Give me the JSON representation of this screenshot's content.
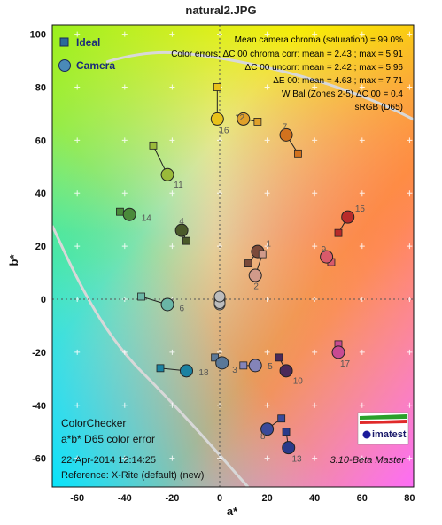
{
  "title": "natural2.JPG",
  "chart_data": {
    "type": "scatter",
    "title": "natural2.JPG",
    "xlabel": "a*",
    "ylabel": "b*",
    "xlim": [
      -70,
      80
    ],
    "ylim": [
      -70,
      103
    ],
    "xticks": [
      "-60",
      "-40",
      "-20",
      "0",
      "20",
      "40",
      "60",
      "80"
    ],
    "yticks": [
      "100",
      "80",
      "60",
      "40",
      "20",
      "0",
      "-20",
      "-40",
      "-60"
    ],
    "legend": [
      {
        "name": "Ideal",
        "marker": "square"
      },
      {
        "name": "Camera",
        "marker": "circle"
      }
    ],
    "legend_position": "top-left",
    "grid": true,
    "patches": [
      {
        "id": "1",
        "ideal": [
          12,
          13.5
        ],
        "camera": [
          16,
          18
        ],
        "color": "#7a4a3a"
      },
      {
        "id": "2",
        "ideal": [
          18,
          17
        ],
        "camera": [
          15,
          9
        ],
        "color": "#d09a8a"
      },
      {
        "id": "3",
        "ideal": [
          -2,
          -22
        ],
        "camera": [
          1,
          -24
        ],
        "color": "#5a7898"
      },
      {
        "id": "4",
        "ideal": [
          -14,
          22
        ],
        "camera": [
          -16,
          26
        ],
        "color": "#4a5a2a"
      },
      {
        "id": "5",
        "ideal": [
          10,
          -25
        ],
        "camera": [
          15,
          -25
        ],
        "color": "#8484b8"
      },
      {
        "id": "6",
        "ideal": [
          -33,
          1
        ],
        "camera": [
          -22,
          -2
        ],
        "color": "#6ab6a6"
      },
      {
        "id": "7",
        "ideal": [
          33,
          55
        ],
        "camera": [
          28,
          62
        ],
        "color": "#d2721e"
      },
      {
        "id": "8",
        "ideal": [
          26,
          -45
        ],
        "camera": [
          20,
          -49
        ],
        "color": "#3a4a9a"
      },
      {
        "id": "9",
        "ideal": [
          47,
          14
        ],
        "camera": [
          45,
          16
        ],
        "color": "#d85a6a"
      },
      {
        "id": "10",
        "ideal": [
          25,
          -22
        ],
        "camera": [
          28,
          -27
        ],
        "color": "#4a2a5a"
      },
      {
        "id": "11",
        "ideal": [
          -28,
          58
        ],
        "camera": [
          -22,
          47
        ],
        "color": "#9aba3a"
      },
      {
        "id": "12",
        "ideal": [
          16,
          67
        ],
        "camera": [
          10,
          68
        ],
        "color": "#e0a02a"
      },
      {
        "id": "13",
        "ideal": [
          28,
          -50
        ],
        "camera": [
          29,
          -56
        ],
        "color": "#2a3a8a"
      },
      {
        "id": "14",
        "ideal": [
          -42,
          33
        ],
        "camera": [
          -38,
          32
        ],
        "color": "#4a8a3a"
      },
      {
        "id": "15",
        "ideal": [
          50,
          25
        ],
        "camera": [
          54,
          31
        ],
        "color": "#b82a2a"
      },
      {
        "id": "16",
        "ideal": [
          -1,
          80
        ],
        "camera": [
          -1,
          68
        ],
        "color": "#e8c21a"
      },
      {
        "id": "17",
        "ideal": [
          50,
          -17
        ],
        "camera": [
          50,
          -20
        ],
        "color": "#c84a92"
      },
      {
        "id": "18",
        "ideal": [
          -25,
          -26
        ],
        "camera": [
          -14,
          -27
        ],
        "color": "#1a82a2"
      }
    ],
    "neutral_points": [
      [
        0,
        0
      ],
      [
        0,
        -1
      ],
      [
        0,
        -2
      ],
      [
        0,
        0.5
      ],
      [
        0,
        -1.5
      ],
      [
        0,
        1
      ]
    ],
    "annotations": {
      "info_lines": [
        "Mean camera chroma (saturation) = 99.0%",
        "Color errors: ΔC 00 chroma corr:  mean = 2.43 ;  max = 5.91",
        "ΔC 00 uncorr:  mean = 2.42 ;  max = 5.96",
        "ΔE 00:  mean = 4.63 ;  max = 7.71",
        "W Bal (Zones 2-5) ΔC 00 = 0.4",
        "sRGB (D65)"
      ],
      "footer_title_1": "ColorChecker",
      "footer_title_2": "a*b* D65 color error",
      "footer_date": "22-Apr-2014 12:14:25",
      "footer_reference": "Reference: X-Rite (default) (new)",
      "version": "3.10-Beta  Master",
      "logo_text": "imatest"
    }
  }
}
